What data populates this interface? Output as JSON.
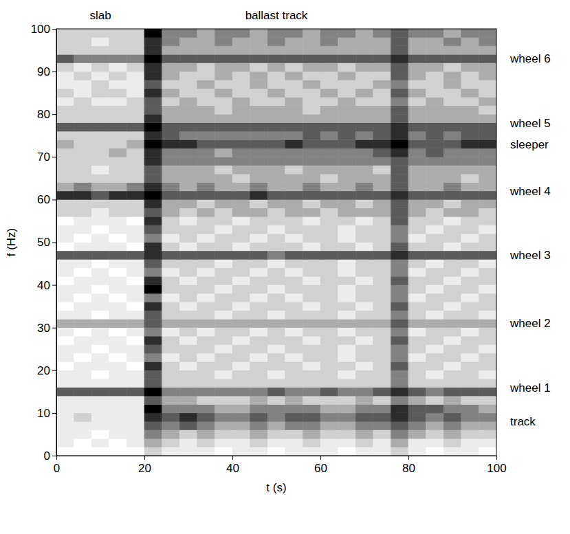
{
  "chart_data": {
    "type": "heatmap",
    "x_label": "t (s)",
    "y_label": "f (Hz)",
    "xlim": [
      0,
      100
    ],
    "ylim": [
      0,
      100
    ],
    "xticks": [
      0,
      20,
      40,
      60,
      80,
      100
    ],
    "yticks": [
      0,
      10,
      20,
      30,
      40,
      50,
      60,
      70,
      80,
      90,
      100
    ],
    "x_bins": [
      0,
      4,
      8,
      12,
      16,
      20,
      24,
      28,
      32,
      36,
      40,
      44,
      48,
      52,
      56,
      60,
      64,
      68,
      72,
      76,
      80,
      84,
      88,
      92,
      96,
      100
    ],
    "y_bins": [
      0,
      2,
      4,
      6,
      8,
      10,
      12,
      14,
      16,
      18,
      20,
      22,
      24,
      26,
      28,
      30,
      32,
      34,
      36,
      38,
      40,
      42,
      44,
      46,
      48,
      50,
      52,
      54,
      56,
      58,
      60,
      62,
      64,
      66,
      68,
      70,
      72,
      74,
      76,
      78,
      80,
      82,
      84,
      86,
      88,
      90,
      92,
      94,
      96,
      98,
      100
    ],
    "cells": [
      [
        1,
        1,
        1,
        1,
        1,
        3,
        2,
        2,
        2,
        1,
        2,
        2,
        1,
        2,
        2,
        2,
        1,
        2,
        2,
        3,
        2,
        1,
        2,
        2,
        1
      ],
      [
        2,
        1,
        2,
        1,
        2,
        4,
        3,
        2,
        3,
        2,
        2,
        3,
        2,
        2,
        3,
        2,
        2,
        3,
        2,
        4,
        2,
        2,
        3,
        2,
        2
      ],
      [
        2,
        2,
        1,
        2,
        2,
        5,
        4,
        3,
        4,
        3,
        3,
        4,
        3,
        3,
        4,
        3,
        3,
        4,
        3,
        5,
        4,
        3,
        4,
        3,
        3
      ],
      [
        2,
        2,
        2,
        2,
        2,
        6,
        5,
        6,
        5,
        4,
        4,
        5,
        4,
        5,
        5,
        4,
        4,
        5,
        5,
        6,
        5,
        4,
        5,
        4,
        4
      ],
      [
        2,
        3,
        2,
        2,
        2,
        7,
        6,
        7,
        6,
        5,
        5,
        6,
        5,
        6,
        6,
        5,
        5,
        6,
        6,
        7,
        6,
        5,
        6,
        5,
        5
      ],
      [
        2,
        2,
        2,
        2,
        2,
        8,
        5,
        5,
        5,
        4,
        4,
        5,
        5,
        5,
        5,
        4,
        4,
        5,
        5,
        7,
        6,
        6,
        5,
        5,
        4
      ],
      [
        2,
        2,
        2,
        2,
        2,
        6,
        4,
        4,
        3,
        3,
        3,
        4,
        3,
        4,
        3,
        3,
        3,
        4,
        3,
        5,
        4,
        3,
        4,
        3,
        3
      ],
      [
        6,
        6,
        6,
        6,
        6,
        8,
        5,
        5,
        5,
        5,
        5,
        5,
        6,
        5,
        5,
        6,
        5,
        5,
        6,
        7,
        6,
        5,
        6,
        6,
        6
      ],
      [
        2,
        2,
        2,
        2,
        2,
        6,
        3,
        3,
        3,
        3,
        3,
        3,
        3,
        3,
        3,
        3,
        3,
        3,
        3,
        5,
        3,
        3,
        3,
        3,
        3
      ],
      [
        2,
        2,
        1,
        2,
        2,
        6,
        3,
        3,
        3,
        2,
        3,
        3,
        2,
        3,
        3,
        3,
        2,
        3,
        3,
        5,
        3,
        2,
        3,
        3,
        2
      ],
      [
        1,
        2,
        2,
        2,
        1,
        7,
        3,
        2,
        3,
        3,
        2,
        3,
        3,
        3,
        2,
        3,
        3,
        2,
        3,
        6,
        3,
        3,
        2,
        3,
        3
      ],
      [
        2,
        1,
        2,
        1,
        2,
        5,
        2,
        3,
        2,
        3,
        3,
        2,
        3,
        2,
        3,
        3,
        2,
        3,
        3,
        5,
        2,
        3,
        3,
        2,
        3
      ],
      [
        2,
        2,
        1,
        2,
        2,
        6,
        3,
        3,
        3,
        2,
        3,
        3,
        2,
        3,
        3,
        3,
        2,
        3,
        3,
        5,
        3,
        2,
        3,
        3,
        2
      ],
      [
        1,
        2,
        2,
        2,
        1,
        7,
        3,
        2,
        3,
        3,
        2,
        3,
        3,
        3,
        2,
        3,
        3,
        2,
        3,
        6,
        3,
        3,
        2,
        3,
        3
      ],
      [
        2,
        1,
        2,
        1,
        2,
        5,
        2,
        3,
        2,
        3,
        3,
        2,
        3,
        2,
        3,
        3,
        2,
        3,
        3,
        5,
        2,
        3,
        3,
        2,
        3
      ],
      [
        4,
        4,
        4,
        4,
        4,
        6,
        4,
        4,
        4,
        4,
        4,
        4,
        4,
        4,
        4,
        4,
        4,
        4,
        4,
        6,
        4,
        4,
        4,
        4,
        4
      ],
      [
        2,
        2,
        1,
        2,
        2,
        6,
        3,
        3,
        3,
        2,
        3,
        3,
        2,
        3,
        3,
        3,
        2,
        3,
        3,
        5,
        3,
        2,
        3,
        3,
        2
      ],
      [
        1,
        2,
        2,
        2,
        1,
        7,
        3,
        2,
        3,
        3,
        2,
        3,
        3,
        3,
        2,
        3,
        3,
        2,
        3,
        6,
        3,
        3,
        2,
        3,
        3
      ],
      [
        2,
        1,
        2,
        1,
        2,
        5,
        2,
        3,
        2,
        3,
        3,
        2,
        3,
        2,
        3,
        3,
        2,
        3,
        3,
        5,
        2,
        3,
        3,
        2,
        3
      ],
      [
        2,
        2,
        1,
        2,
        2,
        8,
        3,
        3,
        3,
        2,
        3,
        3,
        2,
        3,
        3,
        3,
        2,
        3,
        3,
        5,
        3,
        2,
        3,
        3,
        2
      ],
      [
        1,
        2,
        2,
        2,
        1,
        7,
        3,
        2,
        3,
        3,
        2,
        3,
        3,
        3,
        2,
        3,
        3,
        2,
        3,
        6,
        3,
        3,
        2,
        3,
        3
      ],
      [
        2,
        1,
        2,
        1,
        2,
        5,
        2,
        3,
        2,
        3,
        3,
        2,
        3,
        2,
        3,
        3,
        2,
        3,
        3,
        5,
        2,
        3,
        3,
        2,
        3
      ],
      [
        2,
        2,
        1,
        2,
        2,
        6,
        3,
        3,
        3,
        2,
        3,
        3,
        2,
        3,
        3,
        3,
        2,
        3,
        3,
        5,
        3,
        2,
        3,
        3,
        2
      ],
      [
        6,
        6,
        6,
        6,
        6,
        7,
        6,
        6,
        6,
        6,
        6,
        6,
        5,
        6,
        6,
        6,
        6,
        6,
        6,
        7,
        6,
        6,
        6,
        6,
        6
      ],
      [
        1,
        2,
        2,
        2,
        1,
        7,
        3,
        2,
        3,
        3,
        2,
        3,
        3,
        3,
        2,
        3,
        3,
        2,
        3,
        6,
        3,
        3,
        2,
        3,
        3
      ],
      [
        2,
        1,
        2,
        1,
        2,
        5,
        2,
        3,
        2,
        3,
        3,
        2,
        3,
        2,
        3,
        3,
        2,
        3,
        3,
        5,
        2,
        3,
        3,
        2,
        3
      ],
      [
        2,
        2,
        1,
        2,
        2,
        6,
        3,
        3,
        3,
        2,
        3,
        3,
        2,
        3,
        3,
        3,
        2,
        3,
        3,
        5,
        3,
        2,
        3,
        3,
        2
      ],
      [
        1,
        2,
        2,
        2,
        1,
        7,
        3,
        2,
        3,
        3,
        2,
        3,
        3,
        3,
        2,
        3,
        3,
        2,
        3,
        6,
        3,
        3,
        2,
        3,
        3
      ],
      [
        3,
        3,
        2,
        3,
        3,
        6,
        4,
        3,
        4,
        3,
        4,
        4,
        3,
        4,
        4,
        3,
        4,
        4,
        4,
        6,
        4,
        3,
        4,
        4,
        3
      ],
      [
        3,
        3,
        3,
        3,
        3,
        7,
        4,
        4,
        3,
        4,
        4,
        3,
        4,
        4,
        3,
        4,
        4,
        3,
        4,
        6,
        4,
        4,
        3,
        4,
        4
      ],
      [
        7,
        7,
        6,
        7,
        7,
        8,
        6,
        6,
        6,
        6,
        6,
        7,
        6,
        6,
        6,
        6,
        6,
        6,
        6,
        7,
        6,
        6,
        6,
        6,
        6
      ],
      [
        4,
        5,
        4,
        4,
        5,
        7,
        5,
        4,
        5,
        4,
        4,
        5,
        4,
        4,
        5,
        4,
        4,
        5,
        4,
        6,
        4,
        4,
        5,
        4,
        4
      ],
      [
        3,
        3,
        3,
        3,
        3,
        6,
        4,
        4,
        4,
        4,
        3,
        4,
        4,
        4,
        4,
        3,
        4,
        4,
        4,
        6,
        4,
        4,
        4,
        3,
        4
      ],
      [
        3,
        3,
        2,
        3,
        3,
        6,
        4,
        4,
        4,
        3,
        4,
        4,
        4,
        3,
        4,
        4,
        4,
        4,
        3,
        6,
        4,
        4,
        4,
        4,
        4
      ],
      [
        3,
        3,
        3,
        3,
        3,
        7,
        5,
        5,
        5,
        5,
        5,
        5,
        5,
        5,
        5,
        5,
        5,
        5,
        5,
        6,
        5,
        5,
        5,
        5,
        5
      ],
      [
        3,
        3,
        3,
        4,
        3,
        7,
        5,
        5,
        5,
        4,
        5,
        5,
        5,
        5,
        5,
        5,
        5,
        5,
        6,
        7,
        5,
        6,
        5,
        5,
        5
      ],
      [
        4,
        3,
        3,
        3,
        4,
        8,
        7,
        7,
        6,
        6,
        6,
        6,
        6,
        7,
        6,
        6,
        6,
        7,
        7,
        8,
        6,
        6,
        6,
        7,
        7
      ],
      [
        3,
        3,
        3,
        3,
        3,
        7,
        6,
        5,
        5,
        5,
        5,
        5,
        5,
        5,
        6,
        5,
        6,
        5,
        6,
        7,
        5,
        6,
        5,
        6,
        6
      ],
      [
        6,
        6,
        6,
        6,
        6,
        8,
        6,
        6,
        6,
        6,
        6,
        6,
        6,
        6,
        6,
        6,
        6,
        6,
        6,
        7,
        6,
        6,
        6,
        6,
        6
      ],
      [
        3,
        3,
        3,
        3,
        3,
        7,
        4,
        4,
        4,
        4,
        4,
        4,
        4,
        4,
        4,
        4,
        4,
        4,
        4,
        6,
        4,
        4,
        4,
        4,
        4
      ],
      [
        3,
        3,
        3,
        3,
        3,
        6,
        4,
        4,
        4,
        3,
        4,
        4,
        4,
        4,
        3,
        4,
        4,
        4,
        4,
        6,
        4,
        4,
        4,
        4,
        3
      ],
      [
        2,
        3,
        2,
        2,
        3,
        6,
        3,
        4,
        3,
        3,
        4,
        3,
        3,
        4,
        3,
        3,
        4,
        3,
        3,
        5,
        3,
        4,
        3,
        3,
        4
      ],
      [
        3,
        2,
        3,
        3,
        2,
        7,
        4,
        3,
        3,
        4,
        3,
        3,
        4,
        3,
        3,
        4,
        3,
        4,
        3,
        6,
        4,
        3,
        3,
        4,
        3
      ],
      [
        2,
        2,
        3,
        2,
        2,
        6,
        3,
        3,
        4,
        3,
        3,
        4,
        3,
        3,
        4,
        3,
        3,
        3,
        4,
        5,
        3,
        3,
        4,
        3,
        3
      ],
      [
        2,
        3,
        2,
        3,
        2,
        7,
        4,
        3,
        3,
        4,
        3,
        4,
        3,
        4,
        3,
        3,
        4,
        3,
        3,
        6,
        4,
        3,
        4,
        3,
        4
      ],
      [
        3,
        2,
        3,
        2,
        3,
        7,
        4,
        4,
        3,
        4,
        4,
        3,
        4,
        3,
        4,
        4,
        3,
        4,
        4,
        6,
        4,
        4,
        3,
        4,
        4
      ],
      [
        6,
        5,
        5,
        5,
        5,
        8,
        6,
        6,
        6,
        6,
        6,
        6,
        6,
        6,
        6,
        6,
        6,
        6,
        6,
        7,
        6,
        6,
        6,
        6,
        6
      ],
      [
        3,
        3,
        3,
        3,
        3,
        7,
        4,
        4,
        4,
        4,
        4,
        4,
        4,
        4,
        4,
        4,
        4,
        4,
        4,
        6,
        4,
        4,
        4,
        4,
        4
      ],
      [
        3,
        3,
        2,
        3,
        3,
        7,
        5,
        4,
        4,
        5,
        4,
        4,
        5,
        4,
        4,
        5,
        4,
        4,
        4,
        6,
        4,
        4,
        5,
        4,
        5
      ],
      [
        3,
        3,
        3,
        3,
        3,
        8,
        5,
        5,
        4,
        5,
        5,
        4,
        5,
        5,
        4,
        5,
        5,
        4,
        5,
        6,
        5,
        5,
        4,
        5,
        5
      ]
    ],
    "annotations": [
      {
        "text": "slab",
        "x": 10
      },
      {
        "text": "ballast track",
        "x": 50
      },
      {
        "text": "wheel 6",
        "y": 93
      },
      {
        "text": "wheel 5",
        "y": 78
      },
      {
        "text": "sleeper",
        "y": 73
      },
      {
        "text": "wheel 4",
        "y": 62
      },
      {
        "text": "wheel 3",
        "y": 47
      },
      {
        "text": "wheel 2",
        "y": 31
      },
      {
        "text": "wheel 1",
        "y": 16
      },
      {
        "text": "track",
        "y": 8
      }
    ]
  }
}
